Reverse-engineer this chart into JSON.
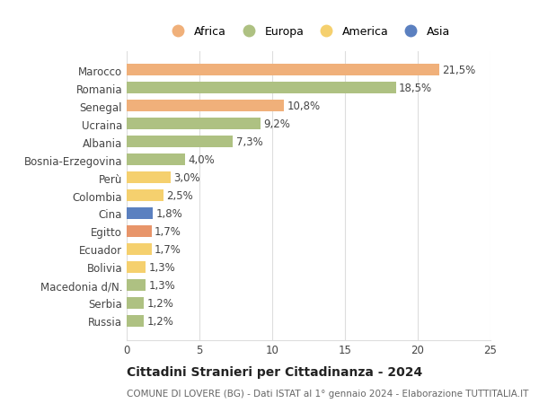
{
  "categories": [
    "Russia",
    "Serbia",
    "Macedonia d/N.",
    "Bolivia",
    "Ecuador",
    "Egitto",
    "Cina",
    "Colombia",
    "Perù",
    "Bosnia-Erzegovina",
    "Albania",
    "Ucraina",
    "Senegal",
    "Romania",
    "Marocco"
  ],
  "values": [
    1.2,
    1.2,
    1.3,
    1.3,
    1.7,
    1.7,
    1.8,
    2.5,
    3.0,
    4.0,
    7.3,
    9.2,
    10.8,
    18.5,
    21.5
  ],
  "labels": [
    "1,2%",
    "1,2%",
    "1,3%",
    "1,3%",
    "1,7%",
    "1,7%",
    "1,8%",
    "2,5%",
    "3,0%",
    "4,0%",
    "7,3%",
    "9,2%",
    "10,8%",
    "18,5%",
    "21,5%"
  ],
  "colors": [
    "#aec182",
    "#aec182",
    "#aec182",
    "#f5d06e",
    "#f5d06e",
    "#e8956a",
    "#5b80c0",
    "#f5d06e",
    "#f5d06e",
    "#aec182",
    "#aec182",
    "#aec182",
    "#f0b07a",
    "#aec182",
    "#f0b07a"
  ],
  "legend_labels": [
    "Africa",
    "Europa",
    "America",
    "Asia"
  ],
  "legend_colors": [
    "#f0b07a",
    "#aec182",
    "#f5d06e",
    "#5b80c0"
  ],
  "title": "Cittadini Stranieri per Cittadinanza - 2024",
  "subtitle": "COMUNE DI LOVERE (BG) - Dati ISTAT al 1° gennaio 2024 - Elaborazione TUTTITALIA.IT",
  "xlim": [
    0,
    25
  ],
  "xticks": [
    0,
    5,
    10,
    15,
    20,
    25
  ],
  "bg_color": "#ffffff",
  "grid_color": "#dddddd",
  "bar_height": 0.65,
  "label_fontsize": 8.5,
  "tick_fontsize": 8.5,
  "title_fontsize": 10,
  "subtitle_fontsize": 7.5
}
